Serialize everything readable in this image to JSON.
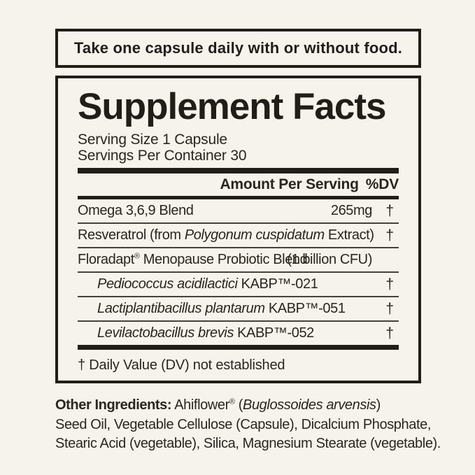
{
  "theme": {
    "background_color": "#f6f2ec",
    "ink_color": "#29251f",
    "rule_color": "#211e1a"
  },
  "directions": {
    "text": "Take one capsule daily with or without food."
  },
  "supplement_facts": {
    "title": "Supplement Facts",
    "serving_size": "Serving Size 1 Capsule",
    "servings_per_container": "Servings Per Container 30",
    "column_header": {
      "amount_label": "Amount Per Serving",
      "dv_label": "%DV"
    },
    "rows": [
      {
        "name": [
          {
            "t": "Omega 3,6,9 Blend"
          }
        ],
        "amount": "265mg",
        "dv": "†",
        "indent": false
      },
      {
        "name": [
          {
            "t": "Resveratrol (from "
          },
          {
            "t": "Polygonum cuspidatum",
            "i": true
          },
          {
            "t": " Extract)"
          }
        ],
        "amount": "",
        "dv": "†",
        "indent": false
      },
      {
        "name": [
          {
            "t": "Floradapt"
          },
          {
            "t": "®",
            "sup": true
          },
          {
            "t": " Menopause Probiotic Blend"
          }
        ],
        "amount": "(1 billion CFU)",
        "dv": "",
        "indent": false
      },
      {
        "name": [
          {
            "t": "Pediococcus acidilactici",
            "i": true
          },
          {
            "t": " KABP™-021"
          }
        ],
        "amount": "",
        "dv": "†",
        "indent": true
      },
      {
        "name": [
          {
            "t": "Lactiplantibacillus plantarum",
            "i": true
          },
          {
            "t": " KABP™-051"
          }
        ],
        "amount": "",
        "dv": "†",
        "indent": true
      },
      {
        "name": [
          {
            "t": "Levilactobacillus brevis",
            "i": true
          },
          {
            "t": " KABP™-052"
          }
        ],
        "amount": "",
        "dv": "†",
        "indent": true
      }
    ],
    "footnote": "† Daily Value (DV) not established"
  },
  "other_ingredients": {
    "segments": [
      {
        "t": "Other Ingredients:",
        "b": true
      },
      {
        "t": " Ahiflower"
      },
      {
        "t": "®",
        "sup": true
      },
      {
        "t": " ("
      },
      {
        "t": "Buglossoides arvensis",
        "i": true
      },
      {
        "t": ")"
      },
      {
        "br": true
      },
      {
        "t": "Seed Oil, Vegetable Cellulose (Capsule), Dicalcium Phosphate,"
      },
      {
        "br": true
      },
      {
        "t": "Stearic Acid (vegetable), Silica, Magnesium Stearate (vegetable)."
      }
    ]
  }
}
